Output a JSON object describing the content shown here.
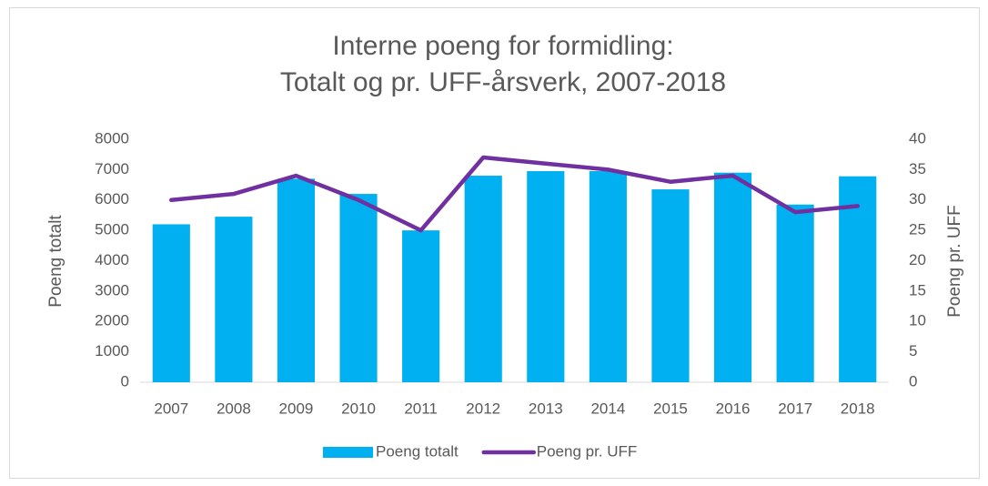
{
  "chart_data": {
    "type": "bar",
    "title": [
      "Interne poeng for formidling:",
      "Totalt og pr. UFF-årsverk, 2007-2018"
    ],
    "ylabel": "Poeng totalt",
    "y2label": "Poeng pr. UFF",
    "categories": [
      "2007",
      "2008",
      "2009",
      "2010",
      "2011",
      "2012",
      "2013",
      "2014",
      "2015",
      "2016",
      "2017",
      "2018"
    ],
    "series": [
      {
        "name": "Poeng totalt",
        "type": "bar",
        "color": "#00b0f0",
        "values": [
          5200,
          5450,
          6700,
          6200,
          5000,
          6800,
          6950,
          6950,
          6350,
          6900,
          5850,
          6780
        ]
      },
      {
        "name": "Poeng pr. UFF",
        "type": "line",
        "axis": "y2",
        "color": "#7030a0",
        "values": [
          30,
          31,
          34,
          30,
          25,
          37,
          36,
          35,
          33,
          34,
          28,
          29
        ]
      }
    ],
    "ylim": [
      0,
      8000
    ],
    "yticks": [
      0,
      1000,
      2000,
      3000,
      4000,
      5000,
      6000,
      7000,
      8000
    ],
    "y2lim": [
      0,
      40
    ],
    "y2ticks": [
      0,
      5,
      10,
      15,
      20,
      25,
      30,
      35,
      40
    ],
    "grid": false,
    "legend": "bottom"
  }
}
